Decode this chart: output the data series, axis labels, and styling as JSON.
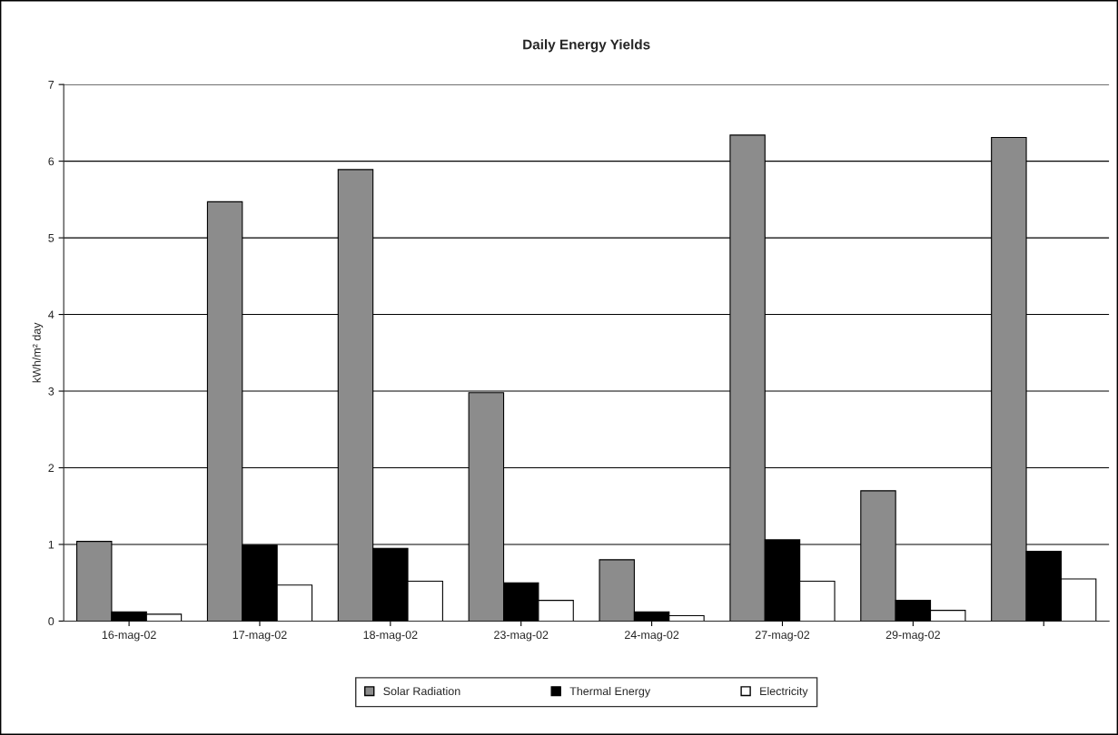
{
  "chart_data": {
    "type": "bar",
    "title": "Daily Energy Yields",
    "ylabel": "kWh/m² day",
    "categories": [
      "16-mag-02",
      "17-mag-02",
      "18-mag-02",
      "23-mag-02",
      "24-mag-02",
      "27-mag-02",
      "29-mag-02",
      null
    ],
    "series": [
      {
        "name": "Solar Radiation",
        "color": "#8c8c8c",
        "values": [
          1.04,
          5.47,
          5.89,
          2.98,
          0.8,
          6.34,
          1.7,
          6.31
        ]
      },
      {
        "name": "Thermal Energy",
        "color": "#000000",
        "values": [
          0.12,
          0.99,
          0.95,
          0.5,
          0.12,
          1.06,
          0.27,
          0.91
        ]
      },
      {
        "name": "Electricity",
        "color": "#ffffff",
        "values": [
          0.09,
          0.47,
          0.52,
          0.27,
          0.07,
          0.52,
          0.14,
          0.55
        ]
      }
    ],
    "ylim": [
      0,
      7
    ],
    "yticks": [
      0,
      1,
      2,
      3,
      4,
      5,
      6,
      7
    ],
    "grid": "y",
    "legend": "bottom"
  }
}
